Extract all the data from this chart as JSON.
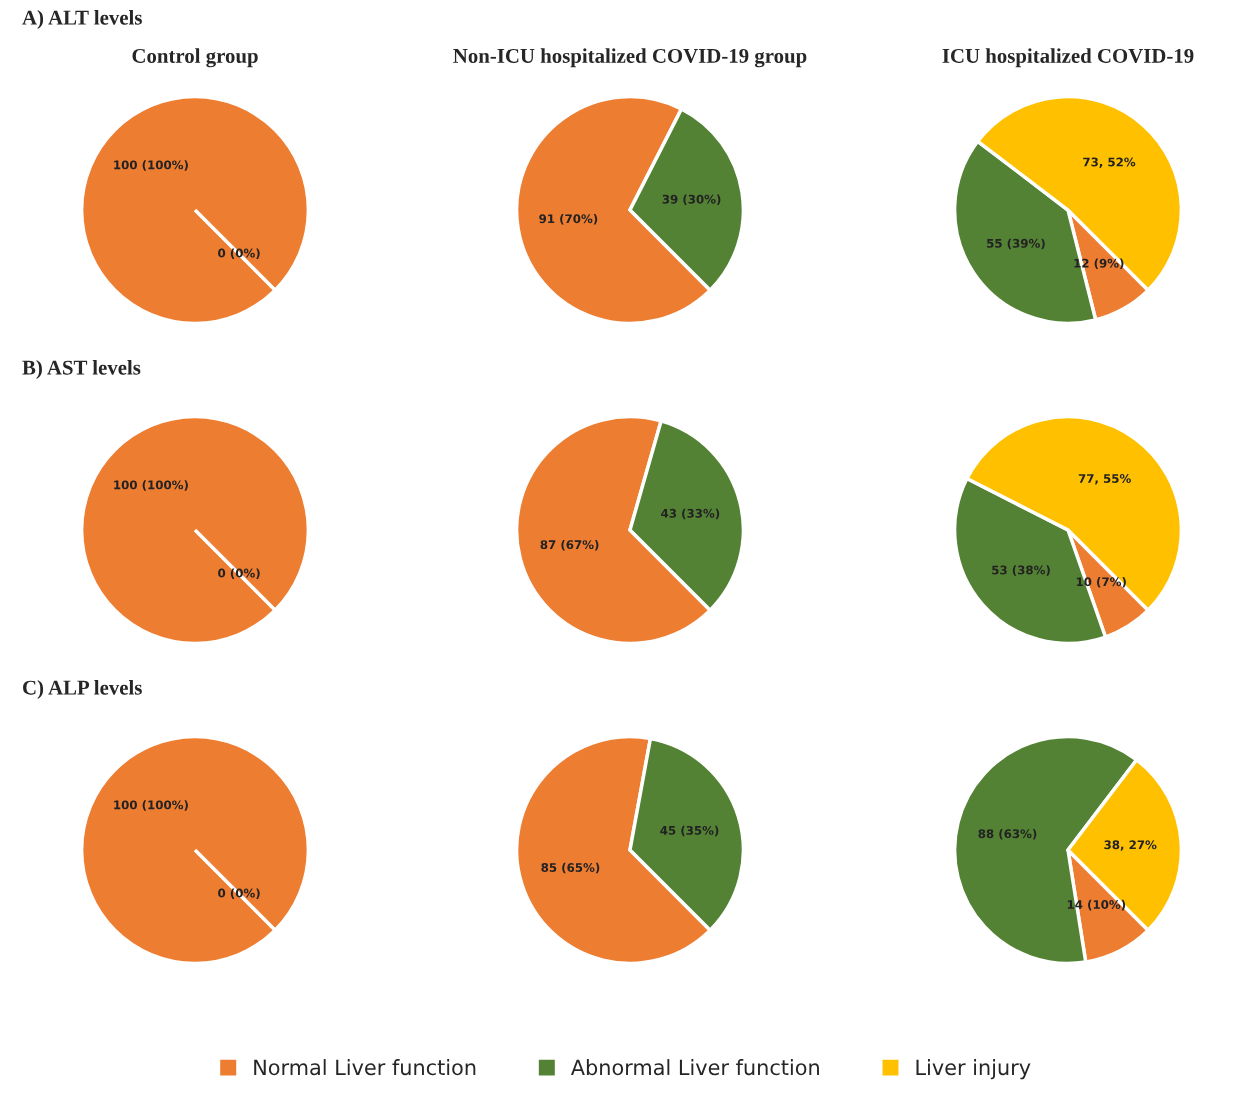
{
  "chart_data": [
    {
      "type": "pie",
      "title": "Control group",
      "annotations": [
        "A) ALT levels"
      ],
      "categories": [
        null,
        null
      ],
      "values": [
        100,
        0
      ],
      "colors": [
        "#ed7d31",
        "#548235"
      ],
      "value_labels": [
        "100 (100%)",
        "0 (0%)"
      ]
    },
    {
      "type": "pie",
      "title": "Non-ICU hospitalized COVID-19 group",
      "categories": [
        null,
        null
      ],
      "values": [
        91,
        39
      ],
      "colors": [
        "#ed7d31",
        "#548235"
      ],
      "value_labels": [
        "91 (70%)",
        "39 (30%)"
      ]
    },
    {
      "type": "pie",
      "title": "ICU hospitalized COVID-19",
      "categories": [
        null,
        null,
        null
      ],
      "values": [
        12,
        55,
        73
      ],
      "colors": [
        "#ed7d31",
        "#548235",
        "#ffc000"
      ],
      "value_labels": [
        "12 (9%)",
        "55 (39%)",
        "73, 52%"
      ]
    },
    {
      "type": "pie",
      "annotations": [
        "B) AST levels"
      ],
      "categories": [
        null,
        null
      ],
      "values": [
        100,
        0
      ],
      "colors": [
        "#ed7d31",
        "#548235"
      ],
      "value_labels": [
        "100 (100%)",
        "0 (0%)"
      ]
    },
    {
      "type": "pie",
      "categories": [
        null,
        null
      ],
      "values": [
        87,
        43
      ],
      "colors": [
        "#ed7d31",
        "#548235"
      ],
      "value_labels": [
        "87 (67%)",
        "43 (33%)"
      ]
    },
    {
      "type": "pie",
      "categories": [
        null,
        null,
        null
      ],
      "values": [
        10,
        53,
        77
      ],
      "colors": [
        "#ed7d31",
        "#548235",
        "#ffc000"
      ],
      "value_labels": [
        "10 (7%)",
        "53 (38%)",
        "77, 55%"
      ]
    },
    {
      "type": "pie",
      "annotations": [
        "C) ALP levels"
      ],
      "categories": [
        null,
        null
      ],
      "values": [
        100,
        0
      ],
      "colors": [
        "#ed7d31",
        "#548235"
      ],
      "value_labels": [
        "100 (100%)",
        "0 (0%)"
      ]
    },
    {
      "type": "pie",
      "categories": [
        null,
        null
      ],
      "values": [
        85,
        45
      ],
      "colors": [
        "#ed7d31",
        "#548235"
      ],
      "value_labels": [
        "85 (65%)",
        "45 (35%)"
      ]
    },
    {
      "type": "pie",
      "categories": [
        "Normal Liver function",
        "Abnormal Liver function",
        "Liver injury"
      ],
      "values": [
        14,
        88,
        38
      ],
      "colors": [
        "#ed7d31",
        "#548235",
        "#ffc000"
      ],
      "value_labels": [
        "14 (10%)",
        "88 (63%)",
        "38, 27%"
      ],
      "legend": "bottom"
    }
  ]
}
